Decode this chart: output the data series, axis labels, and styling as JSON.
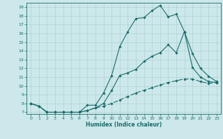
{
  "xlabel": "Humidex (Indice chaleur)",
  "bg_color": "#cce8ea",
  "grid_color": "#aacccc",
  "line_color": "#1a6b6b",
  "xlim": [
    -0.5,
    23.5
  ],
  "ylim": [
    6.8,
    19.5
  ],
  "xticks": [
    0,
    1,
    2,
    3,
    4,
    5,
    6,
    7,
    8,
    9,
    10,
    11,
    12,
    13,
    14,
    15,
    16,
    17,
    18,
    19,
    20,
    21,
    22,
    23
  ],
  "yticks": [
    7,
    8,
    9,
    10,
    11,
    12,
    13,
    14,
    15,
    16,
    17,
    18,
    19
  ],
  "line1_x": [
    0,
    1,
    2,
    3,
    4,
    5,
    6,
    7,
    8,
    9,
    10,
    11,
    12,
    13,
    14,
    15,
    16,
    17,
    18,
    19,
    20,
    21,
    22,
    23
  ],
  "line1_y": [
    8,
    7.7,
    7.0,
    7.0,
    7.0,
    7.0,
    7.0,
    7.8,
    7.8,
    9.2,
    11.2,
    14.5,
    16.2,
    17.7,
    17.8,
    18.6,
    19.2,
    17.9,
    18.2,
    16.2,
    12.1,
    11.0,
    10.5,
    10.4
  ],
  "line2_x": [
    0,
    1,
    2,
    3,
    4,
    5,
    6,
    7,
    8,
    9,
    10,
    11,
    12,
    13,
    14,
    15,
    16,
    17,
    18,
    19,
    20,
    21,
    22,
    23
  ],
  "line2_y": [
    8,
    7.7,
    7.0,
    7.0,
    7.0,
    7.0,
    7.0,
    7.2,
    7.5,
    8.0,
    9.5,
    11.2,
    11.5,
    11.9,
    12.8,
    13.4,
    13.8,
    14.7,
    13.8,
    16.2,
    13.7,
    12.0,
    11.1,
    10.5
  ],
  "line3_x": [
    0,
    1,
    2,
    3,
    4,
    5,
    6,
    7,
    8,
    9,
    10,
    11,
    12,
    13,
    14,
    15,
    16,
    17,
    18,
    19,
    20,
    21,
    22,
    23
  ],
  "line3_y": [
    8,
    7.7,
    7.0,
    7.0,
    7.0,
    7.0,
    7.0,
    7.2,
    7.5,
    7.7,
    8.0,
    8.4,
    8.8,
    9.2,
    9.5,
    9.8,
    10.1,
    10.4,
    10.6,
    10.8,
    10.8,
    10.5,
    10.3,
    10.4
  ]
}
